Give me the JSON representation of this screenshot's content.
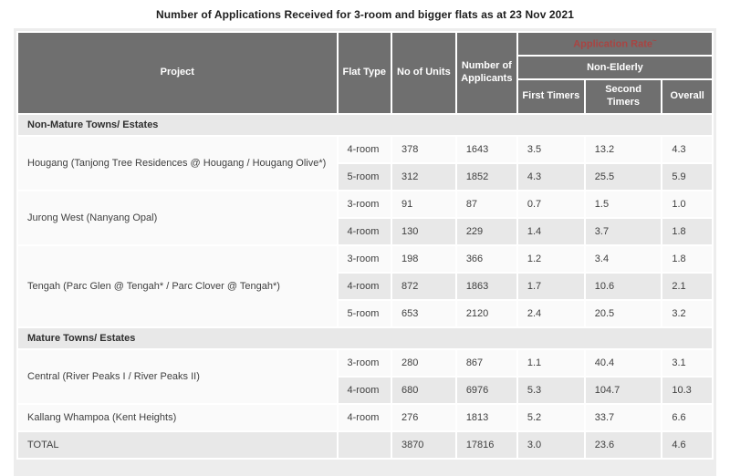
{
  "title": "Number of Applications Received for 3-room and bigger flats as at 23 Nov 2021",
  "colors": {
    "header_bg": "#6f6f6f",
    "header_text": "#ffffff",
    "accent_red": "#a94442",
    "stripe_bg": "#e8e8e8",
    "container_bg": "#ededed",
    "row_bg": "#fafafa"
  },
  "header": {
    "project": "Project",
    "flat_type": "Flat Type",
    "no_of_units": "No of Units",
    "applicants": "Number of Applicants",
    "application_rate": "Application Rate",
    "application_rate_sup": "~",
    "non_elderly": "Non-Elderly",
    "first_timers": "First Timers",
    "second_timers": "Second Timers",
    "overall": "Overall"
  },
  "sections": [
    {
      "label": "Non-Mature Towns/ Estates",
      "projects": [
        {
          "name": "Hougang (Tanjong Tree Residences @ Hougang / Hougang Olive*)",
          "rows": [
            {
              "flat": "4-room",
              "units": "378",
              "applicants": "1643",
              "first": "3.5",
              "second": "13.2",
              "overall": "4.3"
            },
            {
              "flat": "5-room",
              "units": "312",
              "applicants": "1852",
              "first": "4.3",
              "second": "25.5",
              "overall": "5.9"
            }
          ]
        },
        {
          "name": "Jurong West (Nanyang Opal)",
          "rows": [
            {
              "flat": "3-room",
              "units": "91",
              "applicants": "87",
              "first": "0.7",
              "second": "1.5",
              "overall": "1.0"
            },
            {
              "flat": "4-room",
              "units": "130",
              "applicants": "229",
              "first": "1.4",
              "second": "3.7",
              "overall": "1.8"
            }
          ]
        },
        {
          "name": "Tengah (Parc Glen @ Tengah* / Parc Clover @ Tengah*)",
          "rows": [
            {
              "flat": "3-room",
              "units": "198",
              "applicants": "366",
              "first": "1.2",
              "second": "3.4",
              "overall": "1.8"
            },
            {
              "flat": "4-room",
              "units": "872",
              "applicants": "1863",
              "first": "1.7",
              "second": "10.6",
              "overall": "2.1"
            },
            {
              "flat": "5-room",
              "units": "653",
              "applicants": "2120",
              "first": "2.4",
              "second": "20.5",
              "overall": "3.2"
            }
          ]
        }
      ]
    },
    {
      "label": "Mature Towns/ Estates",
      "projects": [
        {
          "name": "Central (River Peaks I / River Peaks II)",
          "rows": [
            {
              "flat": "3-room",
              "units": "280",
              "applicants": "867",
              "first": "1.1",
              "second": "40.4",
              "overall": "3.1"
            },
            {
              "flat": "4-room",
              "units": "680",
              "applicants": "6976",
              "first": "5.3",
              "second": "104.7",
              "overall": "10.3"
            }
          ]
        },
        {
          "name": "Kallang Whampoa (Kent Heights)",
          "rows": [
            {
              "flat": "4-room",
              "units": "276",
              "applicants": "1813",
              "first": "5.2",
              "second": "33.7",
              "overall": "6.6"
            }
          ]
        }
      ]
    }
  ],
  "total": {
    "label": "TOTAL",
    "flat": "",
    "units": "3870",
    "applicants": "17816",
    "first": "3.0",
    "second": "23.6",
    "overall": "4.6"
  }
}
